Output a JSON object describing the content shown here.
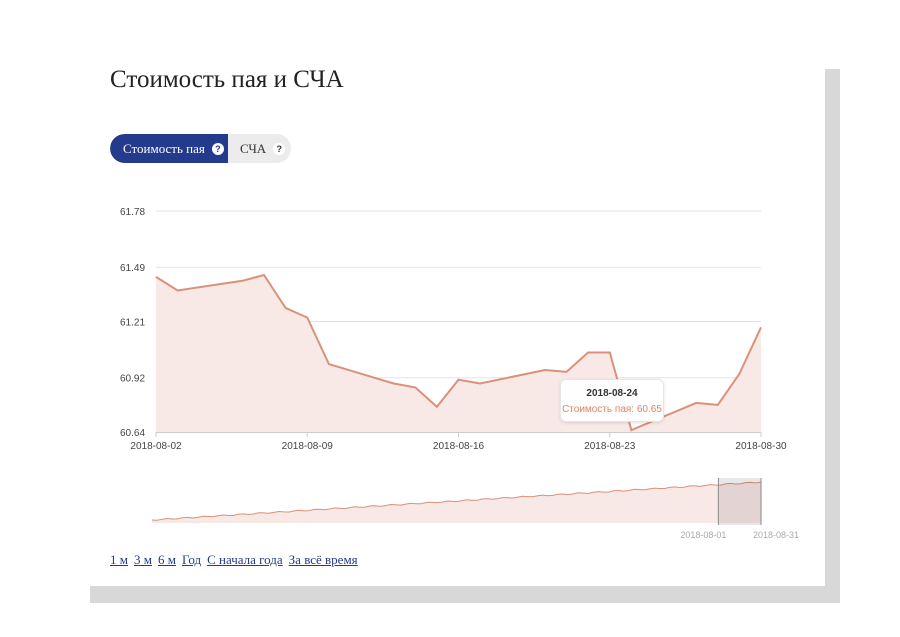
{
  "title": "Стоимость пая и СЧА",
  "tabs": {
    "unit_price": "Стоимость пая",
    "nav": "СЧА",
    "help_mark": "?"
  },
  "tooltip": {
    "date": "2018-08-24",
    "label": "Стоимость пая: 60.65"
  },
  "ranges": [
    "1 м",
    "3 м",
    "6 м",
    "Год",
    "С начала года",
    "За всё время"
  ],
  "navigator": {
    "labels": [
      "2018-08-01",
      "2018-08-31"
    ],
    "selection": [
      0.93,
      1.0
    ]
  },
  "colors": {
    "line": "#d9917a",
    "area": "#f8e9e6",
    "accent": "#243a8c"
  },
  "chart_data": {
    "type": "area",
    "series": [
      {
        "name": "Стоимость пая",
        "x": [
          "2018-08-02",
          "2018-08-03",
          "2018-08-06",
          "2018-08-07",
          "2018-08-08",
          "2018-08-09",
          "2018-08-10",
          "2018-08-13",
          "2018-08-14",
          "2018-08-15",
          "2018-08-16",
          "2018-08-17",
          "2018-08-20",
          "2018-08-21",
          "2018-08-22",
          "2018-08-23",
          "2018-08-24",
          "2018-08-27",
          "2018-08-28",
          "2018-08-29",
          "2018-08-30"
        ],
        "values": [
          61.44,
          61.37,
          61.42,
          61.45,
          61.28,
          61.23,
          60.99,
          60.89,
          60.87,
          60.77,
          60.91,
          60.89,
          60.96,
          60.95,
          61.05,
          61.05,
          60.65,
          60.79,
          60.78,
          60.94,
          61.18
        ]
      }
    ],
    "x_ticks": [
      "2018-08-02",
      "2018-08-09",
      "2018-08-16",
      "2018-08-23",
      "2018-08-30"
    ],
    "y_ticks": [
      "60.64",
      "60.92",
      "61.21",
      "61.49",
      "61.78"
    ],
    "ylim": [
      60.64,
      61.78
    ],
    "xlim": [
      "2018-08-02",
      "2018-08-30"
    ],
    "grid": true,
    "legend": "none"
  }
}
